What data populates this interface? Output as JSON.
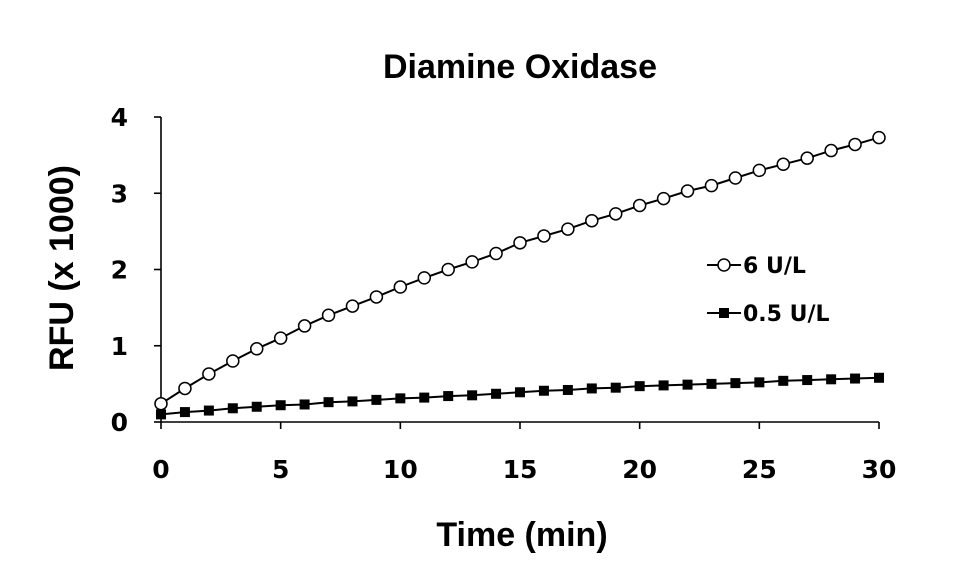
{
  "chart_data": {
    "type": "line",
    "title": "Diamine Oxidase",
    "xlabel": "Time (min)",
    "ylabel": "RFU (x 1000)",
    "xlim": [
      0,
      30
    ],
    "ylim": [
      0,
      4
    ],
    "x_ticks": [
      "0",
      "5",
      "10",
      "15",
      "20",
      "25",
      "30"
    ],
    "y_ticks": [
      "0",
      "1",
      "2",
      "3",
      "4"
    ],
    "grid": false,
    "legend_position": "right",
    "x": [
      0,
      1,
      2,
      3,
      4,
      5,
      6,
      7,
      8,
      9,
      10,
      11,
      12,
      13,
      14,
      15,
      16,
      17,
      18,
      19,
      20,
      21,
      22,
      23,
      24,
      25,
      26,
      27,
      28,
      29,
      30
    ],
    "series": [
      {
        "name": "6 U/L",
        "marker": "open-circle",
        "color": "#000000",
        "values": [
          0.24,
          0.44,
          0.63,
          0.8,
          0.96,
          1.1,
          1.26,
          1.4,
          1.52,
          1.64,
          1.77,
          1.89,
          2.0,
          2.1,
          2.21,
          2.35,
          2.44,
          2.53,
          2.64,
          2.73,
          2.84,
          2.93,
          3.03,
          3.1,
          3.2,
          3.3,
          3.38,
          3.46,
          3.56,
          3.64,
          3.73
        ]
      },
      {
        "name": "0.5 U/L",
        "marker": "filled-square",
        "color": "#000000",
        "values": [
          0.1,
          0.13,
          0.15,
          0.18,
          0.2,
          0.22,
          0.23,
          0.26,
          0.27,
          0.29,
          0.31,
          0.32,
          0.34,
          0.35,
          0.37,
          0.39,
          0.41,
          0.42,
          0.44,
          0.45,
          0.47,
          0.48,
          0.49,
          0.5,
          0.51,
          0.52,
          0.54,
          0.55,
          0.56,
          0.57,
          0.58
        ]
      }
    ]
  }
}
